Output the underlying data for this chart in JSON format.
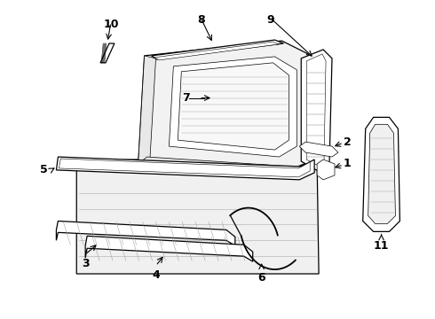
{
  "bg_color": "#ffffff",
  "figsize": [
    4.9,
    3.6
  ],
  "dpi": 100,
  "lw_thin": 0.5,
  "lw_med": 0.9,
  "lw_thick": 1.3,
  "labels_fs": 9
}
